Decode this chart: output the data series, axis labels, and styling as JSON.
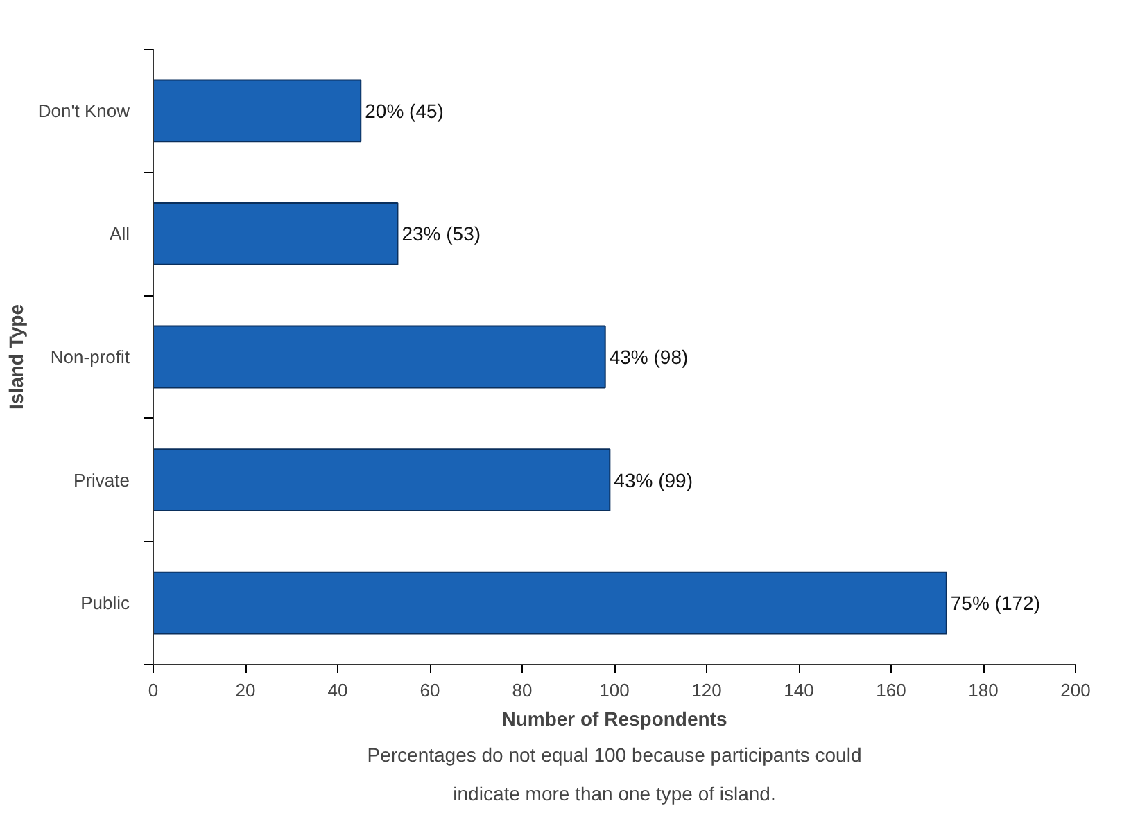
{
  "chart_data": {
    "type": "bar",
    "orientation": "horizontal",
    "xlabel": "Number of Respondents",
    "ylabel": "Island Type",
    "categories": [
      "Don't Know",
      "All",
      "Non-profit",
      "Private",
      "Public"
    ],
    "values": [
      45,
      53,
      98,
      99,
      172
    ],
    "value_labels": [
      "20% (45)",
      "23% (53)",
      "43% (98)",
      "43% (99)",
      "75% (172)"
    ],
    "color": "#1a63b5",
    "xlim": [
      0,
      200
    ],
    "xticks": [
      0,
      20,
      40,
      60,
      80,
      100,
      120,
      140,
      160,
      180,
      200
    ],
    "grid": false,
    "annotations": [
      "Percentages do not equal 100 because participants could\nindicate more than one type of island."
    ]
  }
}
